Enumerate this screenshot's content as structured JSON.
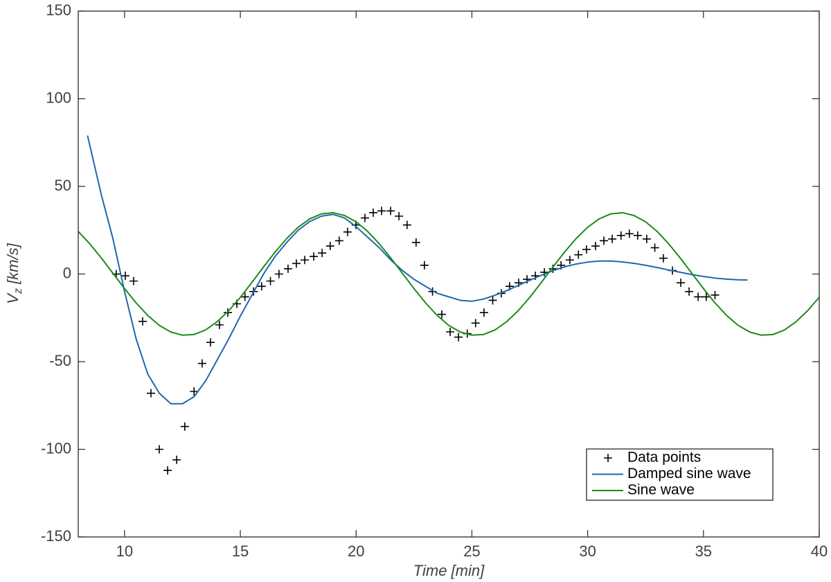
{
  "chart_data": {
    "type": "line",
    "xlabel": "Time [min]",
    "ylabel": {
      "main": "V",
      "sub": "z",
      "rest": " [km/s]"
    },
    "xlim": [
      8,
      40
    ],
    "ylim": [
      -150,
      150
    ],
    "xticks": [
      10,
      15,
      20,
      25,
      30,
      35,
      40
    ],
    "yticks": [
      -150,
      -100,
      -50,
      0,
      50,
      100,
      150
    ],
    "legend": "southeast",
    "series": [
      {
        "name": "Data points",
        "type": "scatter",
        "color": "#000000",
        "x": [
          9.64,
          10.03,
          10.39,
          10.78,
          11.14,
          11.5,
          11.86,
          12.25,
          12.6,
          13.0,
          13.35,
          13.71,
          14.1,
          14.46,
          14.85,
          15.2,
          15.57,
          15.92,
          16.3,
          16.67,
          17.06,
          17.42,
          17.78,
          18.17,
          18.53,
          18.88,
          19.27,
          19.63,
          19.99,
          20.38,
          20.74,
          21.1,
          21.49,
          21.85,
          22.2,
          22.59,
          22.95,
          23.3,
          23.7,
          24.06,
          24.42,
          24.8,
          25.16,
          25.52,
          25.9,
          26.27,
          26.63,
          27.02,
          27.38,
          27.74,
          28.13,
          28.5,
          28.85,
          29.23,
          29.6,
          29.95,
          30.34,
          30.7,
          31.06,
          31.44,
          31.8,
          32.16,
          32.55,
          32.9,
          33.27,
          33.66,
          34.02,
          34.38,
          34.77,
          35.12,
          35.5
        ],
        "values": [
          0,
          -1,
          -4,
          -27,
          -68,
          -100,
          -112,
          -106,
          -87,
          -67,
          -51,
          -39,
          -29,
          -22,
          -17,
          -13,
          -10,
          -7,
          -4,
          0,
          3,
          6,
          8,
          10,
          12,
          16,
          19,
          24,
          28,
          32,
          35,
          36,
          36,
          33,
          28,
          18,
          5,
          -10,
          -23,
          -33,
          -36,
          -34,
          -28,
          -22,
          -15,
          -11,
          -7,
          -5,
          -3,
          -1,
          1,
          3,
          5,
          8,
          11,
          14,
          16,
          19,
          20,
          22,
          23,
          22,
          20,
          15,
          9,
          2,
          -5,
          -10,
          -13,
          -13,
          -12
        ]
      },
      {
        "name": "Damped sine wave",
        "type": "line",
        "color": "#2166ac",
        "x": [
          8.4,
          9,
          9.5,
          10,
          10.5,
          11,
          11.5,
          12,
          12.5,
          13,
          13.5,
          14,
          14.5,
          15,
          15.5,
          16,
          16.5,
          17,
          17.5,
          18,
          18.5,
          19,
          19.5,
          20,
          20.5,
          21,
          21.5,
          22,
          22.5,
          23,
          23.5,
          24,
          24.5,
          25,
          25.5,
          26,
          26.5,
          27,
          27.5,
          28,
          28.5,
          29,
          29.5,
          30,
          30.5,
          31,
          31.5,
          32,
          32.5,
          33,
          33.5,
          34,
          34.5,
          35,
          35.5,
          36,
          36.5,
          36.9
        ],
        "values": [
          79,
          45,
          20,
          -10,
          -37,
          -57,
          -68,
          -74,
          -74,
          -70,
          -61,
          -49,
          -37,
          -24,
          -12,
          0,
          10,
          18,
          25,
          30,
          33,
          34,
          32,
          27,
          21,
          15,
          8,
          2,
          -3,
          -7,
          -11,
          -13,
          -15,
          -15.5,
          -14.3,
          -12.1,
          -9.5,
          -6.5,
          -3.6,
          -0.7,
          1.9,
          4.1,
          5.7,
          6.8,
          7.4,
          7.4,
          6.9,
          6.1,
          5.0,
          3.7,
          2.3,
          1.0,
          -0.3,
          -1.4,
          -2.3,
          -2.9,
          -3.3,
          -3.4
        ]
      },
      {
        "name": "Sine wave",
        "type": "line",
        "color": "#1a8a1a",
        "x": [
          8,
          8.5,
          9,
          9.5,
          10,
          10.5,
          11,
          11.5,
          12,
          12.5,
          13,
          13.5,
          14,
          14.5,
          15,
          15.5,
          16,
          16.5,
          17,
          17.5,
          18,
          18.5,
          19,
          19.5,
          20,
          20.5,
          21,
          21.5,
          22,
          22.5,
          23,
          23.5,
          24,
          24.5,
          25,
          25.5,
          26,
          26.5,
          27,
          27.5,
          28,
          28.5,
          29,
          29.5,
          30,
          30.5,
          31,
          31.5,
          32,
          32.5,
          33,
          33.5,
          34,
          34.5,
          35,
          35.5,
          36,
          36.5,
          37,
          37.5,
          38,
          38.5,
          39,
          39.5,
          40
        ],
        "values": [
          24.3,
          17.2,
          9.1,
          0.4,
          -8.3,
          -16.5,
          -23.6,
          -29.3,
          -33.1,
          -34.9,
          -34.5,
          -31.9,
          -27.2,
          -20.9,
          -13.3,
          -4.8,
          4.0,
          12.5,
          20.2,
          26.7,
          31.5,
          34.3,
          35.0,
          33.4,
          29.8,
          24.3,
          17.2,
          9.1,
          0.4,
          -8.3,
          -16.5,
          -23.6,
          -29.3,
          -33.1,
          -34.9,
          -34.5,
          -31.9,
          -27.2,
          -20.9,
          -13.3,
          -4.8,
          4.0,
          12.5,
          20.2,
          26.7,
          31.5,
          34.3,
          35.0,
          33.4,
          29.8,
          24.3,
          17.2,
          9.1,
          0.4,
          -8.3,
          -16.5,
          -23.6,
          -29.3,
          -33.1,
          -34.9,
          -34.5,
          -31.9,
          -27.2,
          -20.9,
          -13.3
        ]
      }
    ]
  }
}
